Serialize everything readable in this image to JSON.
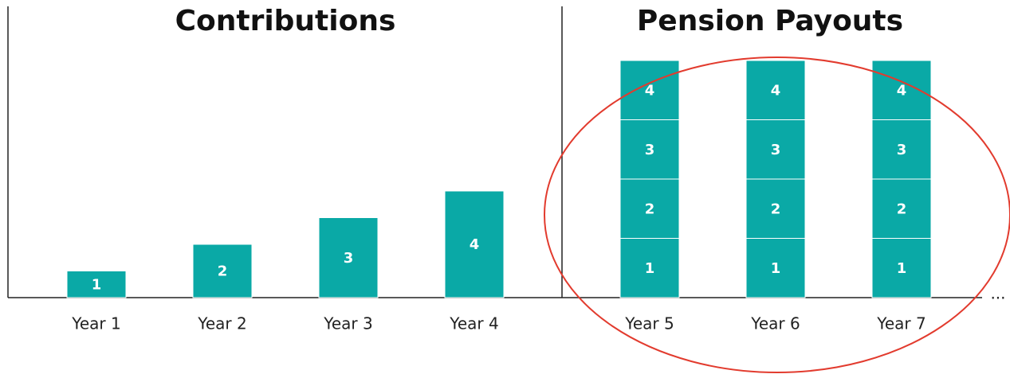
{
  "panels": [
    {
      "title": "Contributions",
      "bars": [
        {
          "label": "Year 1",
          "blocks": [
            1
          ]
        },
        {
          "label": "Year 2",
          "blocks": [
            2
          ]
        },
        {
          "label": "Year 3",
          "blocks": [
            3
          ]
        },
        {
          "label": "Year 4",
          "blocks": [
            4
          ]
        }
      ]
    },
    {
      "title": "Pension Payouts",
      "bars": [
        {
          "label": "Year 5",
          "blocks": [
            1,
            2,
            3,
            4
          ]
        },
        {
          "label": "Year 6",
          "blocks": [
            1,
            2,
            3,
            4
          ]
        },
        {
          "label": "Year 7",
          "blocks": [
            1,
            2,
            3,
            4
          ]
        }
      ]
    }
  ],
  "ellipsis": "..."
}
